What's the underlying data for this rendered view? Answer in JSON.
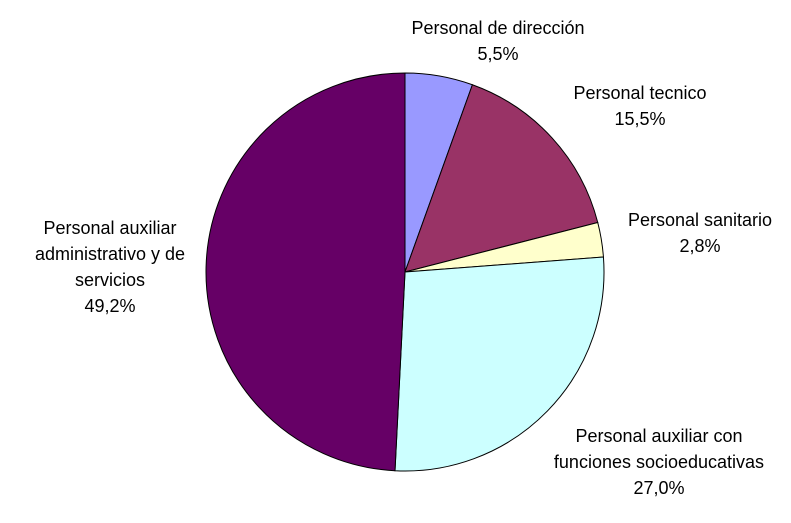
{
  "chart_data": {
    "type": "pie",
    "categories": [
      "Personal de dirección",
      "Personal tecnico",
      "Personal sanitario",
      "Personal auxiliar con funciones socioeducativas",
      "Personal auxiliar administrativo y de servicios"
    ],
    "values": [
      5.5,
      15.5,
      2.8,
      27.0,
      49.2
    ],
    "value_labels": [
      "5,5%",
      "15,5%",
      "2,8%",
      "27,0%",
      "49,2%"
    ],
    "colors": [
      "#9999ff",
      "#993366",
      "#ffffcc",
      "#ccffff",
      "#660066"
    ]
  }
}
